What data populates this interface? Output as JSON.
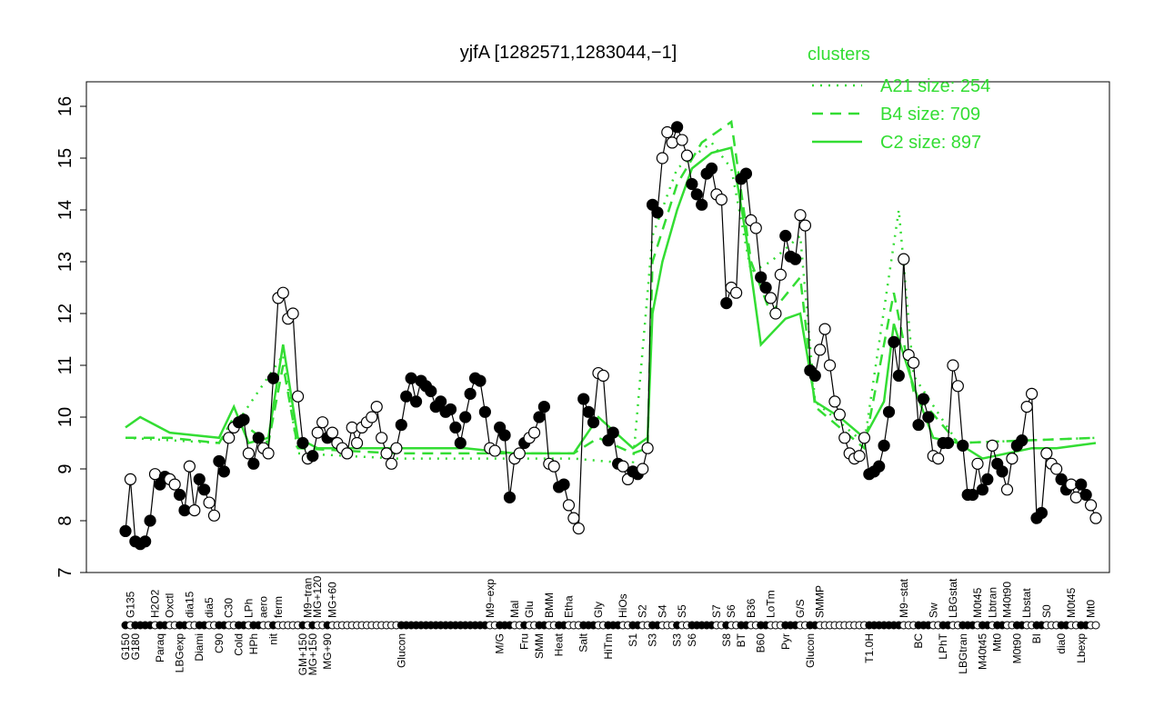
{
  "chart_data": {
    "type": "line",
    "title": "yjfA [1282571,1283044,−1]",
    "xlabel": "",
    "ylabel": "",
    "ylim": [
      7,
      16
    ],
    "yticks": [
      7,
      8,
      9,
      10,
      11,
      12,
      13,
      14,
      15,
      16
    ],
    "grid": false,
    "legend": {
      "title": "clusters",
      "placement": "top-right",
      "color": "#33dd33"
    },
    "points": [
      [
        "G150",
        7.8
      ],
      [
        "G135",
        8.8
      ],
      [
        "G180",
        7.6
      ],
      [
        "",
        7.55
      ],
      [
        "",
        7.6
      ],
      [
        "",
        8.0
      ],
      [
        "H2O2",
        8.9
      ],
      [
        "Paraq",
        8.7
      ],
      [
        "",
        8.85
      ],
      [
        "Oxctl",
        8.8
      ],
      [
        "",
        8.7
      ],
      [
        "LBGexp",
        8.5
      ],
      [
        "",
        8.2
      ],
      [
        "dia15",
        9.05
      ],
      [
        "",
        8.2
      ],
      [
        "Diami",
        8.8
      ],
      [
        "",
        8.6
      ],
      [
        "dia5",
        8.35
      ],
      [
        "",
        8.1
      ],
      [
        "C90",
        9.15
      ],
      [
        "",
        8.95
      ],
      [
        "C30",
        9.6
      ],
      [
        "",
        9.8
      ],
      [
        "Cold",
        9.9
      ],
      [
        "",
        9.95
      ],
      [
        "LPh",
        9.3
      ],
      [
        "HPh",
        9.1
      ],
      [
        "",
        9.6
      ],
      [
        "aero",
        9.4
      ],
      [
        "",
        9.3
      ],
      [
        "nit",
        10.75
      ],
      [
        "ferm",
        12.3
      ],
      [
        "",
        12.4
      ],
      [
        "",
        11.9
      ],
      [
        "",
        12.0
      ],
      [
        "",
        10.4
      ],
      [
        "GM+150",
        9.5
      ],
      [
        "M9−tran",
        9.2
      ],
      [
        "MG+150",
        9.25
      ],
      [
        "MG+120",
        9.7
      ],
      [
        "",
        9.9
      ],
      [
        "MG+90",
        9.6
      ],
      [
        "MG+60",
        9.7
      ],
      [
        "",
        9.5
      ],
      [
        "",
        9.4
      ],
      [
        "",
        9.3
      ],
      [
        "",
        9.8
      ],
      [
        "",
        9.5
      ],
      [
        "",
        9.8
      ],
      [
        "",
        9.9
      ],
      [
        "",
        10.0
      ],
      [
        "",
        10.2
      ],
      [
        "",
        9.6
      ],
      [
        "",
        9.3
      ],
      [
        "",
        9.1
      ],
      [
        "",
        9.4
      ],
      [
        "Glucon",
        9.85
      ],
      [
        "",
        10.4
      ],
      [
        "",
        10.75
      ],
      [
        "",
        10.3
      ],
      [
        "",
        10.7
      ],
      [
        "",
        10.6
      ],
      [
        "",
        10.5
      ],
      [
        "",
        10.2
      ],
      [
        "",
        10.3
      ],
      [
        "",
        10.1
      ],
      [
        "",
        10.15
      ],
      [
        "",
        9.8
      ],
      [
        "",
        9.5
      ],
      [
        "",
        10.0
      ],
      [
        "",
        10.45
      ],
      [
        "",
        10.75
      ],
      [
        "",
        10.7
      ],
      [
        "",
        10.1
      ],
      [
        "M9−exp",
        9.4
      ],
      [
        "",
        9.35
      ],
      [
        "M/G",
        9.8
      ],
      [
        "",
        9.65
      ],
      [
        "",
        8.45
      ],
      [
        "Mal",
        9.2
      ],
      [
        "",
        9.3
      ],
      [
        "Fru",
        9.5
      ],
      [
        "Glu",
        9.6
      ],
      [
        "",
        9.7
      ],
      [
        "SMM",
        10.0
      ],
      [
        "",
        10.2
      ],
      [
        "BMM",
        9.1
      ],
      [
        "",
        9.05
      ],
      [
        "Heat",
        8.65
      ],
      [
        "",
        8.7
      ],
      [
        "Etha",
        8.3
      ],
      [
        "",
        8.05
      ],
      [
        "",
        7.85
      ],
      [
        "Salt",
        10.35
      ],
      [
        "",
        10.1
      ],
      [
        "",
        9.9
      ],
      [
        "Gly",
        10.85
      ],
      [
        "",
        10.8
      ],
      [
        "HiTm",
        9.55
      ],
      [
        "",
        9.7
      ],
      [
        "",
        9.1
      ],
      [
        "HiOs",
        9.05
      ],
      [
        "",
        8.8
      ],
      [
        "S1",
        8.95
      ],
      [
        "",
        8.9
      ],
      [
        "S2",
        9.0
      ],
      [
        "",
        9.4
      ],
      [
        "S3",
        14.1
      ],
      [
        "",
        13.95
      ],
      [
        "S4",
        15.0
      ],
      [
        "",
        15.5
      ],
      [
        "",
        15.3
      ],
      [
        "S3",
        15.6
      ],
      [
        "S5",
        15.35
      ],
      [
        "",
        15.05
      ],
      [
        "S6",
        14.5
      ],
      [
        "",
        14.3
      ],
      [
        "",
        14.1
      ],
      [
        "",
        14.7
      ],
      [
        "",
        14.8
      ],
      [
        "S7",
        14.3
      ],
      [
        "",
        14.2
      ],
      [
        "S8",
        12.2
      ],
      [
        "S6",
        12.5
      ],
      [
        "",
        12.4
      ],
      [
        "BT",
        14.6
      ],
      [
        "",
        14.7
      ],
      [
        "B36",
        13.8
      ],
      [
        "",
        13.65
      ],
      [
        "B60",
        12.7
      ],
      [
        "",
        12.5
      ],
      [
        "LoTm",
        12.3
      ],
      [
        "",
        12.0
      ],
      [
        "",
        12.75
      ],
      [
        "Pyr",
        13.5
      ],
      [
        "",
        13.1
      ],
      [
        "",
        13.05
      ],
      [
        "G/S",
        13.9
      ],
      [
        "",
        13.7
      ],
      [
        "Glucon",
        10.9
      ],
      [
        "",
        10.8
      ],
      [
        "SMMP",
        11.3
      ],
      [
        "",
        11.7
      ],
      [
        "",
        11.0
      ],
      [
        "",
        10.3
      ],
      [
        "",
        10.05
      ],
      [
        "",
        9.6
      ],
      [
        "",
        9.3
      ],
      [
        "",
        9.2
      ],
      [
        "",
        9.25
      ],
      [
        "",
        9.6
      ],
      [
        "T1.0H",
        8.9
      ],
      [
        "",
        8.95
      ],
      [
        "",
        9.05
      ],
      [
        "",
        9.45
      ],
      [
        "",
        10.1
      ],
      [
        "",
        11.45
      ],
      [
        "",
        10.8
      ],
      [
        "M9−stat",
        13.05
      ],
      [
        "",
        11.2
      ],
      [
        "",
        11.05
      ],
      [
        "BC",
        9.85
      ],
      [
        "",
        10.35
      ],
      [
        "",
        10.0
      ],
      [
        "Sw",
        9.25
      ],
      [
        "",
        9.2
      ],
      [
        "LPhT",
        9.5
      ],
      [
        "",
        9.5
      ],
      [
        "LBGstat",
        11.0
      ],
      [
        "",
        10.6
      ],
      [
        "LBGtran",
        9.45
      ],
      [
        "",
        8.5
      ],
      [
        "",
        8.5
      ],
      [
        "M0t45",
        9.1
      ],
      [
        "M40t45",
        8.6
      ],
      [
        "",
        8.8
      ],
      [
        "Lbtran",
        9.45
      ],
      [
        "Mt0",
        9.1
      ],
      [
        "",
        8.95
      ],
      [
        "M40t90",
        8.6
      ],
      [
        "",
        9.2
      ],
      [
        "M0t90",
        9.45
      ],
      [
        "",
        9.55
      ],
      [
        "Lbstat",
        10.2
      ],
      [
        "",
        10.45
      ],
      [
        "BI",
        8.05
      ],
      [
        "",
        8.15
      ],
      [
        "S0",
        9.3
      ],
      [
        "",
        9.1
      ],
      [
        "",
        9.0
      ],
      [
        "dia0",
        8.8
      ],
      [
        "",
        8.6
      ],
      [
        "M0t45",
        8.7
      ],
      [
        "",
        8.45
      ],
      [
        "Lbexp",
        8.7
      ],
      [
        "",
        8.5
      ],
      [
        "Mt0",
        8.3
      ],
      [
        "",
        8.05
      ]
    ],
    "series": [
      {
        "name": "A21 size: 254",
        "style": "dotted",
        "color": "#33dd33",
        "knots": [
          [
            1,
            9.6
          ],
          [
            20,
            9.5
          ],
          [
            23,
            9.8
          ],
          [
            33,
            11.2
          ],
          [
            36,
            9.3
          ],
          [
            56,
            9.2
          ],
          [
            92,
            9.2
          ],
          [
            104,
            9.1
          ],
          [
            108,
            13.5
          ],
          [
            113,
            14.8
          ],
          [
            120,
            15.3
          ],
          [
            124,
            14.8
          ],
          [
            128,
            12.8
          ],
          [
            132,
            13.0
          ],
          [
            138,
            13.5
          ],
          [
            141,
            10.3
          ],
          [
            151,
            9.5
          ],
          [
            158,
            14.0
          ],
          [
            161,
            10.8
          ],
          [
            170,
            9.5
          ],
          [
            198,
            9.6
          ]
        ]
      },
      {
        "name": "B4 size: 709",
        "style": "dashed",
        "color": "#33dd33",
        "knots": [
          [
            1,
            9.6
          ],
          [
            10,
            9.6
          ],
          [
            20,
            9.5
          ],
          [
            23,
            10.0
          ],
          [
            30,
            9.5
          ],
          [
            33,
            11.0
          ],
          [
            36,
            9.4
          ],
          [
            56,
            9.3
          ],
          [
            92,
            9.3
          ],
          [
            97,
            9.6
          ],
          [
            104,
            9.3
          ],
          [
            107,
            9.4
          ],
          [
            108,
            13.0
          ],
          [
            113,
            14.5
          ],
          [
            118,
            15.3
          ],
          [
            124,
            15.7
          ],
          [
            128,
            13.0
          ],
          [
            132,
            12.0
          ],
          [
            138,
            12.7
          ],
          [
            141,
            10.2
          ],
          [
            151,
            9.4
          ],
          [
            157,
            12.4
          ],
          [
            161,
            10.5
          ],
          [
            170,
            9.5
          ],
          [
            198,
            9.6
          ]
        ]
      },
      {
        "name": "C2 size: 897",
        "style": "solid",
        "color": "#33dd33",
        "knots": [
          [
            1,
            9.8
          ],
          [
            4,
            10.0
          ],
          [
            10,
            9.7
          ],
          [
            20,
            9.6
          ],
          [
            23,
            10.2
          ],
          [
            26,
            9.5
          ],
          [
            30,
            9.6
          ],
          [
            33,
            11.4
          ],
          [
            36,
            9.6
          ],
          [
            40,
            9.4
          ],
          [
            56,
            9.4
          ],
          [
            70,
            9.4
          ],
          [
            80,
            9.3
          ],
          [
            92,
            9.3
          ],
          [
            97,
            10.0
          ],
          [
            104,
            9.4
          ],
          [
            107,
            9.6
          ],
          [
            108,
            12.0
          ],
          [
            110,
            13.0
          ],
          [
            113,
            14.0
          ],
          [
            116,
            14.8
          ],
          [
            120,
            15.1
          ],
          [
            124,
            15.2
          ],
          [
            127,
            13.5
          ],
          [
            130,
            11.4
          ],
          [
            132,
            11.6
          ],
          [
            135,
            11.9
          ],
          [
            138,
            12.0
          ],
          [
            141,
            10.3
          ],
          [
            146,
            10.0
          ],
          [
            151,
            9.6
          ],
          [
            155,
            10.3
          ],
          [
            157,
            11.8
          ],
          [
            161,
            10.6
          ],
          [
            165,
            9.6
          ],
          [
            170,
            9.5
          ],
          [
            175,
            9.2
          ],
          [
            180,
            9.3
          ],
          [
            185,
            9.4
          ],
          [
            190,
            9.4
          ],
          [
            198,
            9.5
          ]
        ]
      }
    ]
  }
}
